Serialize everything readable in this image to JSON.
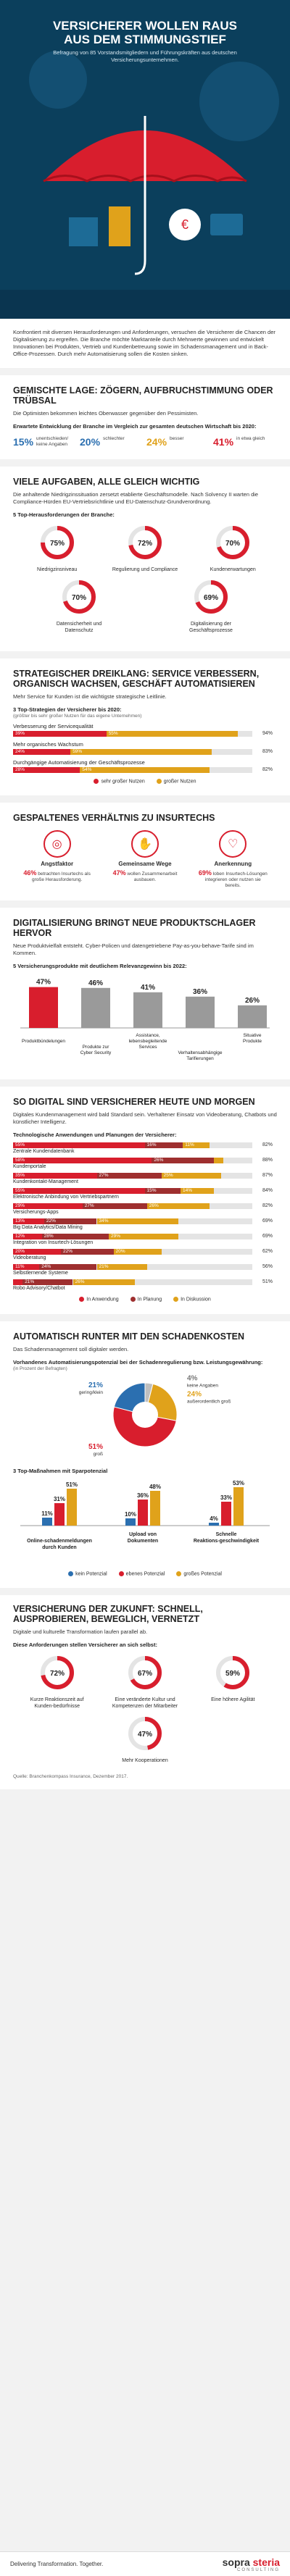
{
  "hero": {
    "title": "VERSICHERER WOLLEN RAUS AUS DEM STIMMUNGSTIEF",
    "subtitle": "Befragung von 85 Vorstandsmitgliedern und Führungskräften aus deutschen Versicherungsunternehmen."
  },
  "intro": "Konfrontiert mit diversen Herausforderungen und Anforderungen, versuchen die Versicherer die Chancen der Digitalisierung zu ergreifen. Die Branche möchte Marktanteile durch Mehrwerte gewinnen und entwickelt Innovationen bei Produkten, Vertrieb und Kundenbetreuung sowie im Schadensmanagement und in Back-Office-Prozessen. Durch mehr Automatisierung sollen die Kosten sinken.",
  "s1": {
    "title": "GEMISCHTE LAGE: ZÖGERN, AUFBRUCHSTIMMUNG ODER TRÜBSAL",
    "text": "Die Optimisten bekommen leichtes Oberwasser gegenüber den Pessimisten.",
    "subtitle": "Erwartete Entwicklung der Branche im Vergleich zur gesamten deutschen Wirtschaft bis 2020:",
    "kpis": [
      {
        "value": "15%",
        "label": "unentschieden/ keine Angaben",
        "color": "#2b6fb0"
      },
      {
        "value": "20%",
        "label": "schlechter",
        "color": "#2b6fb0"
      },
      {
        "value": "24%",
        "label": "besser",
        "color": "#e0a21b"
      },
      {
        "value": "41%",
        "label": "in etwa gleich",
        "color": "#d81e2d"
      }
    ]
  },
  "s2": {
    "title": "VIELE AUFGABEN, ALLE GLEICH WICHTIG",
    "text": "Die anhaltende Niedrigzinssituation zersetzt etablierte Geschäftsmodelle. Nach Solvency II warten die Compliance-Hürden EU-Vertriebsrichtlinie und EU-Datenschutz-Grundverordnung.",
    "subtitle": "5 Top-Herausforderungen der Branche:",
    "items": [
      {
        "pct": "75%",
        "value": 75,
        "label": "Niedrigzinsniveau"
      },
      {
        "pct": "72%",
        "value": 72,
        "label": "Regulierung und Compliance"
      },
      {
        "pct": "70%",
        "value": 70,
        "label": "Kundenerwartungen"
      },
      {
        "pct": "70%",
        "value": 70,
        "label": "Datensicherheit und Datenschutz"
      },
      {
        "pct": "69%",
        "value": 69,
        "label": "Digitalisierung der Geschäftsprozesse"
      }
    ]
  },
  "s3": {
    "title": "STRATEGISCHER DREIKLANG: SERVICE VERBESSERN, ORGANISCH WACHSEN, GESCHÄFT AUTOMATISIEREN",
    "text": "Mehr Service für Kunden ist die wichtigste strategische Leitlinie.",
    "subtitle": "3 Top-Strategien der Versicherer bis 2020:",
    "note": "(größter bis sehr großer Nutzen für das eigene Unternehmen)",
    "legend": [
      "sehr großer Nutzen",
      "großer Nutzen"
    ],
    "bars": [
      {
        "label": "Verbesserung der Servicequalität",
        "a": 39,
        "b": 55,
        "a_label": "39%",
        "b_label": "55%",
        "total": "94%"
      },
      {
        "label": "Mehr organisches Wachstum",
        "a": 24,
        "b": 59,
        "a_label": "24%",
        "b_label": "59%",
        "total": "83%"
      },
      {
        "label": "Durchgängige Automatisierung der Geschäftsprozesse",
        "a": 28,
        "b": 54,
        "a_label": "28%",
        "b_label": "54%",
        "total": "82%"
      }
    ]
  },
  "s4": {
    "title": "GESPALTENES VERHÄLTNIS ZU INSURTECHS",
    "items": [
      {
        "icon": "target-icon",
        "glyph": "◎",
        "title": "Angstfaktor",
        "value": "46%",
        "text": "betrachten Insurtechs als große Herausforderung."
      },
      {
        "icon": "handshake-icon",
        "glyph": "✋",
        "title": "Gemeinsame Wege",
        "value": "47%",
        "text": "wollen Zusammenarbeit ausbauen."
      },
      {
        "icon": "heart-icon",
        "glyph": "♡",
        "title": "Anerkennung",
        "value": "69%",
        "text": "loben Insurtech-Lösungen integrieren oder nutzen sie bereits."
      }
    ]
  },
  "s5": {
    "title": "DIGITALISIERUNG BRINGT NEUE PRODUKTSCHLAGER HERVOR",
    "text": "Neue Produktvielfalt entsteht. Cyber-Policen und datengetriebene Pay-as-you-behave-Tarife sind im Kommen.",
    "subtitle": "5 Versicherungsprodukte mit deutlichem Relevanzgewinn bis 2022:",
    "items": [
      {
        "label": "Produktbündelungen",
        "pct": "47%",
        "value": 47
      },
      {
        "label": "Produkte zur Cyber Security",
        "pct": "46%",
        "value": 46
      },
      {
        "label": "Assistance, lebensbegleitende Services",
        "pct": "41%",
        "value": 41
      },
      {
        "label": "Verhaltensabhängige Tarifierungen",
        "pct": "36%",
        "value": 36
      },
      {
        "label": "Situative Produkte",
        "pct": "26%",
        "value": 26
      }
    ]
  },
  "s6": {
    "title": "SO DIGITAL SIND VERSICHERER HEUTE UND MORGEN",
    "text": "Digitales Kundenmanagement wird bald Standard sein. Verhaltener Einsatz von Videoberatung, Chatbots und künstlicher Intelligenz.",
    "subtitle": "Technologische Anwendungen und Planungen der Versicherer:",
    "legend": [
      "In Anwendung",
      "In Planung",
      "In Diskussion"
    ],
    "rows": [
      {
        "label": "Zentrale Kundendatenbank",
        "a": 55,
        "b": 16,
        "c": 11,
        "total": "82%"
      },
      {
        "label": "Kundenportale",
        "a": 58,
        "b": 26,
        "c": 4,
        "total": "88%"
      },
      {
        "label": "Kundenkontakt-Management",
        "a": 35,
        "b": 27,
        "c": 25,
        "total": "87%"
      },
      {
        "label": "Elektronische Anbindung von Vertriebspartnern",
        "a": 55,
        "b": 15,
        "c": 14,
        "total": "84%"
      },
      {
        "label": "Versicherungs-Apps",
        "a": 29,
        "b": 27,
        "c": 26,
        "total": "82%"
      },
      {
        "label": "Big Data Analytics/Data Mining",
        "a": 13,
        "b": 22,
        "c": 34,
        "total": "69%"
      },
      {
        "label": "Integration von Insurtech-Lösungen",
        "a": 12,
        "b": 28,
        "c": 29,
        "total": "69%"
      },
      {
        "label": "Videoberatung",
        "a": 20,
        "b": 22,
        "c": 20,
        "total": "62%"
      },
      {
        "label": "Selbstlernende Systeme",
        "a": 11,
        "b": 24,
        "c": 21,
        "total": "56%"
      },
      {
        "label": "Robo Advisory/Chatbot",
        "a": 4,
        "b": 21,
        "c": 26,
        "total": "51%"
      }
    ]
  },
  "s7": {
    "title": "AUTOMATISCH RUNTER MIT DEN SCHADENKOSTEN",
    "text": "Das Schadenmanagement soll digitaler werden.",
    "subtitle": "Vorhandenes Automatisierungspotenzial bei der Schadenregulierung bzw. Leistungsgewährung:",
    "note": "(in Prozent der Befragten)",
    "pie": [
      {
        "label": "keine Angaben",
        "pct": "4%",
        "value": 4,
        "color": "#bfbfbf"
      },
      {
        "label": "außerordentlich groß",
        "pct": "24%",
        "value": 24,
        "color": "#e0a21b"
      },
      {
        "label": "groß",
        "pct": "51%",
        "value": 51,
        "color": "#d81e2d"
      },
      {
        "label": "gering/klein",
        "pct": "21%",
        "value": 21,
        "color": "#2b6fb0"
      }
    ],
    "sub2": "3 Top-Maßnahmen mit Sparpotenzial",
    "legend": [
      "kein Potenzial",
      "ebenes Potenzial",
      "großes Potenzial"
    ],
    "groups": [
      {
        "label": "Online-schadenmeldungen durch Kunden",
        "values": [
          11,
          31,
          51
        ]
      },
      {
        "label": "Upload von Dokumenten",
        "values": [
          10,
          36,
          48
        ]
      },
      {
        "label": "Schnelle Reaktions-geschwindigkeit",
        "values": [
          4,
          33,
          53
        ]
      }
    ]
  },
  "s8": {
    "title": "VERSICHERUNG DER ZUKUNFT: SCHNELL, AUSPROBIEREN, BEWEGLICH, VERNETZT",
    "text": "Digitale und kulturelle Transformation laufen parallel ab.",
    "subtitle": "Diese Anforderungen stellen Versicherer an sich selbst:",
    "items": [
      {
        "pct": "72%",
        "value": 72,
        "label": "Kurze Reaktionszeit auf Kunden-bedürfnisse"
      },
      {
        "pct": "67%",
        "value": 67,
        "label": "Eine veränderte Kultur und Kompetenzen der Mitarbeiter"
      },
      {
        "pct": "59%",
        "value": 59,
        "label": "Eine höhere Agilität"
      },
      {
        "pct": "47%",
        "value": 47,
        "label": "Mehr Kooperationen"
      }
    ],
    "source": "Quelle: Branchenkompass Insurance, Dezember 2017."
  },
  "footer": {
    "slogan": "Delivering Transformation. Together.",
    "brand1": "sopra",
    "brand2": "steria",
    "brand3": "CONSULTING"
  },
  "chart_data": [
    {
      "type": "pie",
      "title": "Erwartete Entwicklung der Branche im Vergleich zur gesamten deutschen Wirtschaft bis 2020",
      "categories": [
        "unentschieden/ keine Angaben",
        "schlechter",
        "besser",
        "in etwa gleich"
      ],
      "values": [
        15,
        20,
        24,
        41
      ]
    },
    {
      "type": "bar",
      "title": "5 Top-Herausforderungen der Branche",
      "categories": [
        "Niedrigzinsniveau",
        "Regulierung und Compliance",
        "Kundenerwartungen",
        "Datensicherheit und Datenschutz",
        "Digitalisierung der Geschäftsprozesse"
      ],
      "values": [
        75,
        72,
        70,
        70,
        69
      ]
    },
    {
      "type": "bar",
      "title": "3 Top-Strategien der Versicherer bis 2020",
      "categories": [
        "Verbesserung der Servicequalität",
        "Mehr organisches Wachstum",
        "Durchgängige Automatisierung der Geschäftsprozesse"
      ],
      "series": [
        {
          "name": "sehr großer Nutzen",
          "values": [
            39,
            24,
            28
          ]
        },
        {
          "name": "großer Nutzen",
          "values": [
            55,
            59,
            54
          ]
        }
      ]
    },
    {
      "type": "bar",
      "title": "5 Versicherungsprodukte mit deutlichem Relevanzgewinn bis 2022",
      "categories": [
        "Produktbündelungen",
        "Produkte zur Cyber Security",
        "Assistance, lebensbegleitende Services",
        "Verhaltensabhängige Tarifierungen",
        "Situative Produkte"
      ],
      "values": [
        47,
        46,
        41,
        36,
        26
      ]
    },
    {
      "type": "bar",
      "title": "Technologische Anwendungen und Planungen der Versicherer",
      "categories": [
        "Zentrale Kundendatenbank",
        "Kundenportale",
        "Kundenkontakt-Management",
        "Elektronische Anbindung von Vertriebspartnern",
        "Versicherungs-Apps",
        "Big Data Analytics/Data Mining",
        "Integration von Insurtech-Lösungen",
        "Videoberatung",
        "Selbstlernende Systeme",
        "Robo Advisory/Chatbot"
      ],
      "series": [
        {
          "name": "In Anwendung",
          "values": [
            55,
            58,
            35,
            55,
            29,
            13,
            12,
            20,
            11,
            4
          ]
        },
        {
          "name": "In Planung",
          "values": [
            16,
            26,
            27,
            15,
            27,
            22,
            28,
            22,
            24,
            21
          ]
        },
        {
          "name": "In Diskussion",
          "values": [
            11,
            4,
            25,
            14,
            26,
            34,
            29,
            20,
            21,
            26
          ]
        }
      ]
    },
    {
      "type": "pie",
      "title": "Vorhandenes Automatisierungspotenzial bei der Schadenregulierung bzw. Leistungsgewährung",
      "categories": [
        "keine Angaben",
        "außerordentlich groß",
        "groß",
        "gering/klein"
      ],
      "values": [
        4,
        24,
        51,
        21
      ]
    },
    {
      "type": "bar",
      "title": "3 Top-Maßnahmen mit Sparpotenzial",
      "categories": [
        "Online-schadenmeldungen durch Kunden",
        "Upload von Dokumenten",
        "Schnelle Reaktions-geschwindigkeit"
      ],
      "series": [
        {
          "name": "kein Potenzial",
          "values": [
            11,
            10,
            4
          ]
        },
        {
          "name": "ebenes Potenzial",
          "values": [
            31,
            36,
            33
          ]
        },
        {
          "name": "großes Potenzial",
          "values": [
            51,
            48,
            53
          ]
        }
      ]
    },
    {
      "type": "bar",
      "title": "Diese Anforderungen stellen Versicherer an sich selbst",
      "categories": [
        "Kurze Reaktionszeit auf Kunden-bedürfnisse",
        "Eine veränderte Kultur und Kompetenzen der Mitarbeiter",
        "Eine höhere Agilität",
        "Mehr Kooperationen"
      ],
      "values": [
        72,
        67,
        59,
        47
      ]
    }
  ]
}
